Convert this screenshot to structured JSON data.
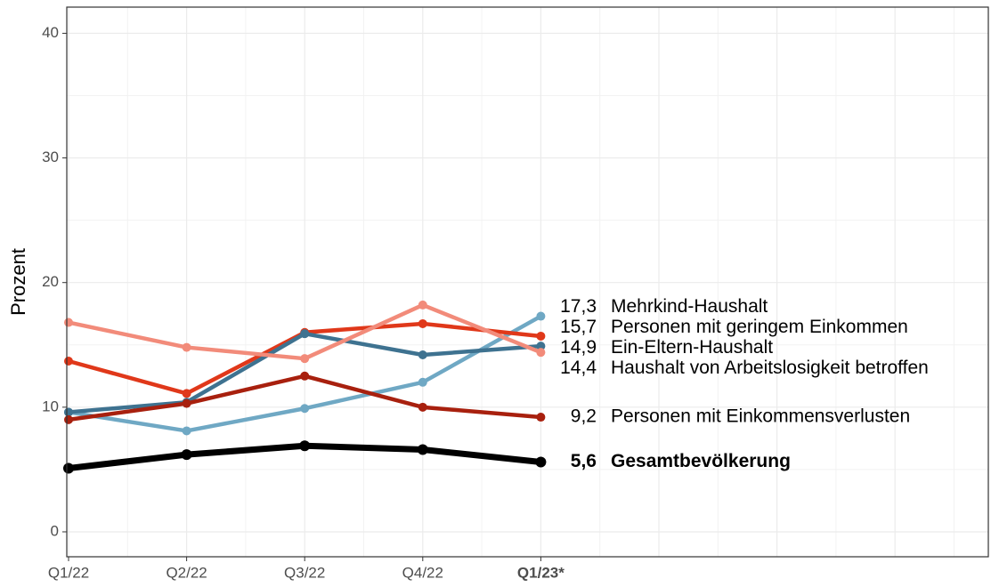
{
  "chart_data": {
    "type": "line",
    "y_label": "Prozent",
    "categories": [
      "Q1/22",
      "Q2/22",
      "Q3/22",
      "Q4/22",
      "Q1/23*"
    ],
    "ylim": [
      -2,
      42.1
    ],
    "yticks": [
      0,
      10,
      20,
      30,
      40
    ],
    "grid": true,
    "series": [
      {
        "name": "Mehrkind-Haushalt",
        "color": "#6fa8c4",
        "values": [
          9.6,
          8.1,
          9.9,
          12.0,
          17.3
        ],
        "value_labels": [
          null,
          null,
          null,
          null,
          "17,3"
        ]
      },
      {
        "name": "Personen mit geringem Einkommen",
        "color": "#e0381a",
        "values": [
          13.7,
          11.1,
          16.0,
          16.7,
          15.7
        ],
        "value_labels": [
          null,
          null,
          null,
          null,
          "15,7"
        ]
      },
      {
        "name": "Ein-Eltern-Haushalt",
        "color": "#3e7290",
        "values": [
          9.6,
          10.4,
          15.9,
          14.2,
          14.9
        ],
        "value_labels": [
          null,
          null,
          null,
          null,
          "14,9"
        ]
      },
      {
        "name": "Haushalt von Arbeitslosigkeit betroffen",
        "color": "#f28b7a",
        "values": [
          16.8,
          14.8,
          13.9,
          18.2,
          14.4
        ],
        "value_labels": [
          null,
          null,
          null,
          null,
          "14,4"
        ]
      },
      {
        "name": "Personen mit Einkommensverlusten",
        "color": "#a8200e",
        "values": [
          9.0,
          10.3,
          12.5,
          10.0,
          9.2
        ],
        "value_labels": [
          null,
          null,
          null,
          null,
          "9,2"
        ]
      },
      {
        "name": "Gesamtbevölkerung",
        "color": "#000000",
        "bold": true,
        "values": [
          5.1,
          6.2,
          6.9,
          6.6,
          5.6
        ],
        "value_labels": [
          null,
          null,
          null,
          null,
          "5,6"
        ]
      }
    ]
  }
}
